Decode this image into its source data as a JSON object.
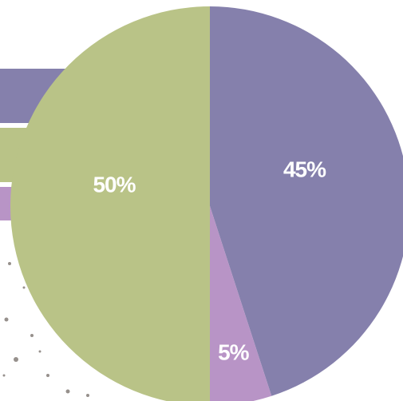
{
  "chart_data": {
    "type": "pie",
    "categories": [
      null,
      null,
      null
    ],
    "values": [
      45,
      5,
      50
    ],
    "value_labels": [
      "45%",
      "5%",
      "50%"
    ],
    "colors": [
      "#8580ac",
      "#b894c6",
      "#b9c387"
    ]
  }
}
